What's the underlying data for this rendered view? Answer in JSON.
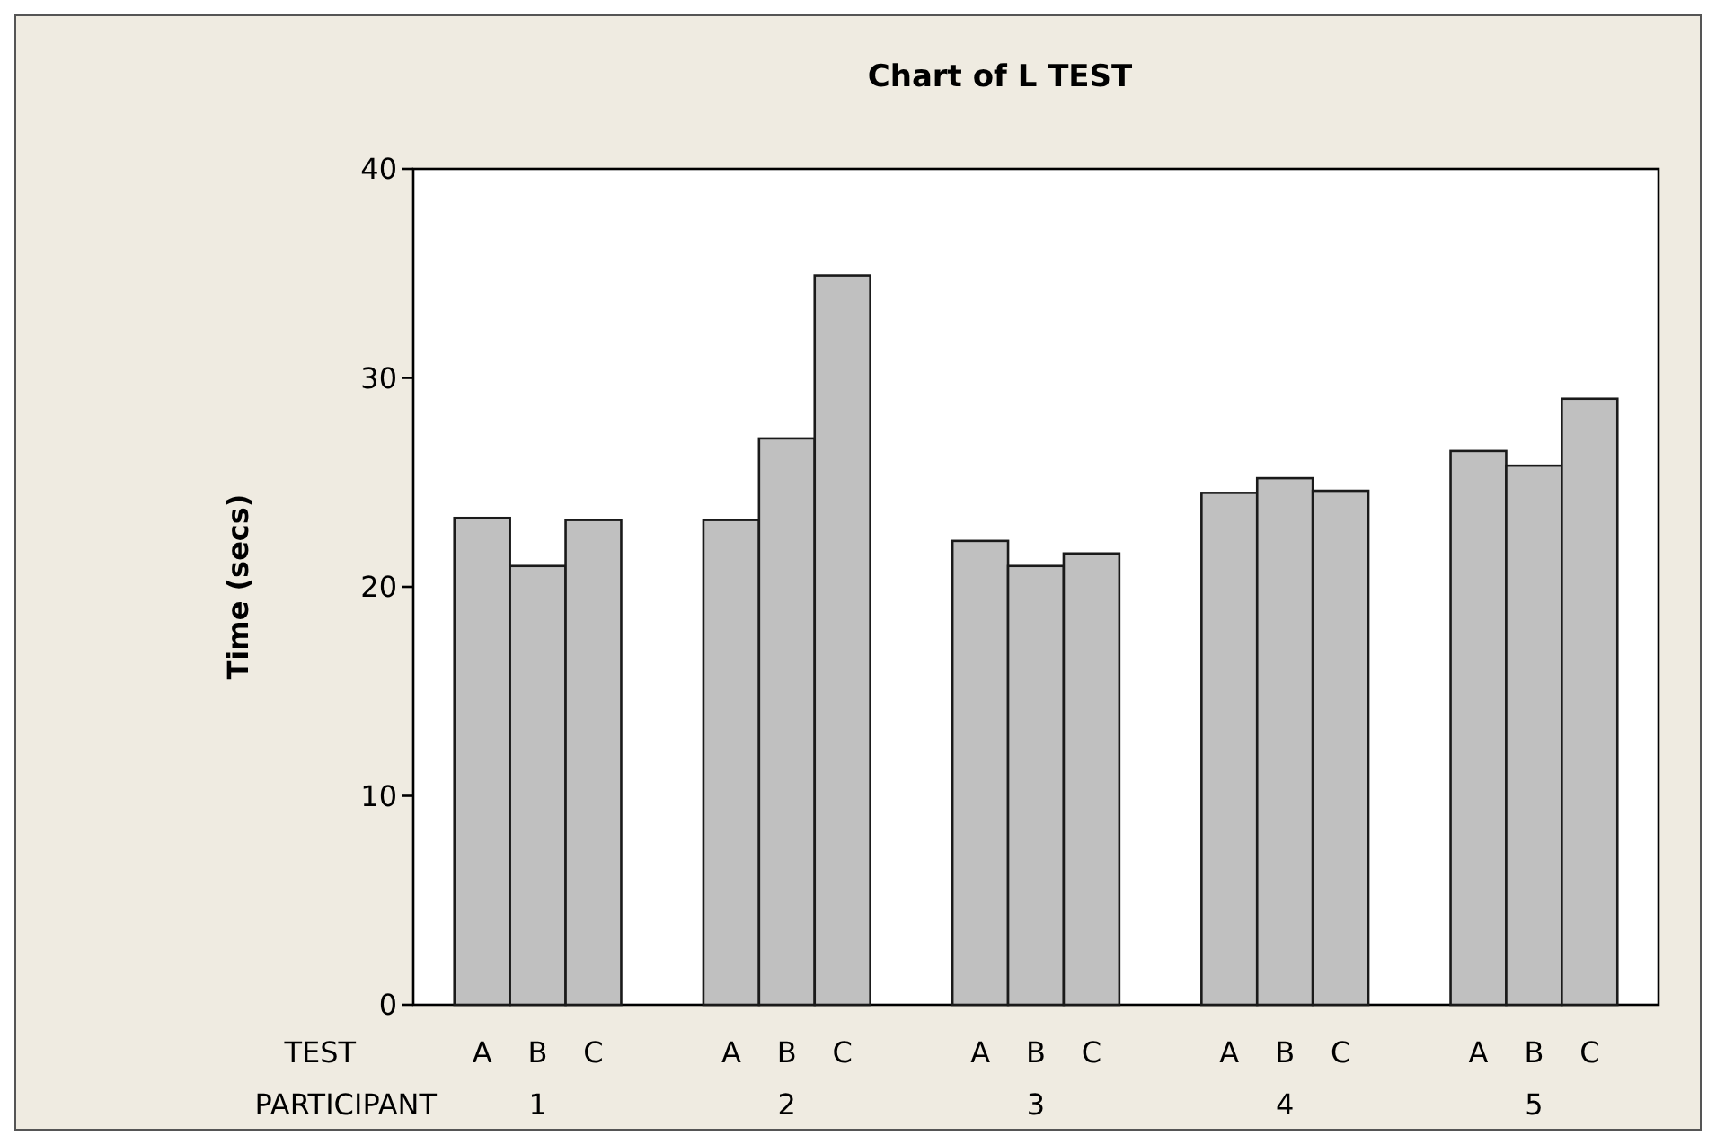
{
  "chart_data": {
    "type": "bar",
    "title": "Chart of L TEST",
    "ylabel": "Time (secs)",
    "xlabel": "PARTICIPANT",
    "legend_title": "TEST",
    "categories": [
      "1",
      "2",
      "3",
      "4",
      "5"
    ],
    "series": [
      {
        "name": "A",
        "color": "#c0c0c0",
        "values": [
          23.3,
          23.2,
          22.2,
          24.5,
          26.5
        ]
      },
      {
        "name": "B",
        "color": "#c0c0c0",
        "values": [
          21.0,
          27.1,
          21.0,
          25.2,
          25.8
        ]
      },
      {
        "name": "C",
        "color": "#c0c0c0",
        "values": [
          23.2,
          34.9,
          21.6,
          24.6,
          29.0
        ]
      }
    ],
    "ylim": [
      0,
      40
    ],
    "yticks": [
      0,
      10,
      20,
      30,
      40
    ],
    "grid": false
  }
}
